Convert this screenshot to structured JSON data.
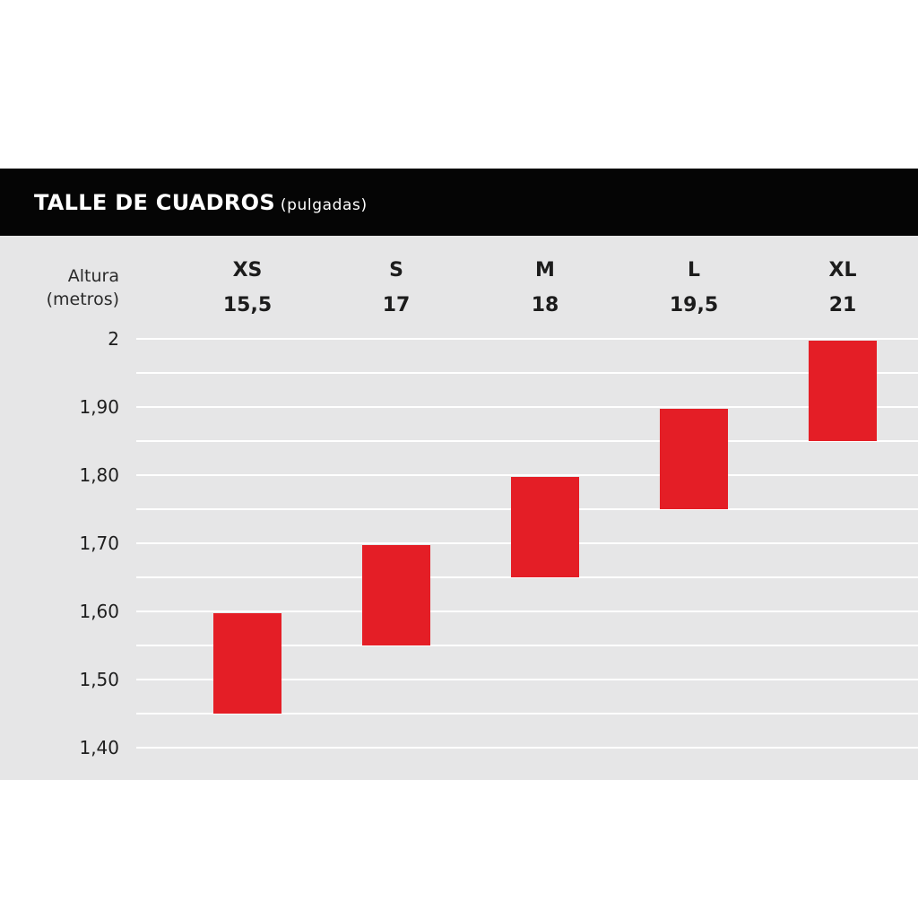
{
  "header": {
    "title": "TALLE DE CUADROS",
    "unit": "(pulgadas)"
  },
  "colors": {
    "header_bg": "#050505",
    "panel_bg": "#e6e6e7",
    "bar": "#e41e26",
    "grid": "#ffffff"
  },
  "chart_data": {
    "type": "bar",
    "title": "TALLE DE CUADROS (pulgadas)",
    "ylabel_line1": "Altura",
    "ylabel_line2": "(metros)",
    "categories": [
      "XS",
      "S",
      "M",
      "L",
      "XL"
    ],
    "sizes": [
      "15,5",
      "17",
      "18",
      "19,5",
      "21"
    ],
    "ranges": [
      {
        "category": "XS",
        "low": 1.45,
        "high": 1.6
      },
      {
        "category": "S",
        "low": 1.55,
        "high": 1.7
      },
      {
        "category": "M",
        "low": 1.65,
        "high": 1.8
      },
      {
        "category": "L",
        "low": 1.75,
        "high": 1.9
      },
      {
        "category": "XL",
        "low": 1.85,
        "high": 2.0
      }
    ],
    "yticks": [
      2.0,
      1.9,
      1.8,
      1.7,
      1.6,
      1.5,
      1.4
    ],
    "ytick_labels": [
      "2",
      "1,90",
      "1,80",
      "1,70",
      "1,60",
      "1,50",
      "1,40"
    ],
    "ylim": [
      1.4,
      2.0
    ],
    "grid": true
  }
}
